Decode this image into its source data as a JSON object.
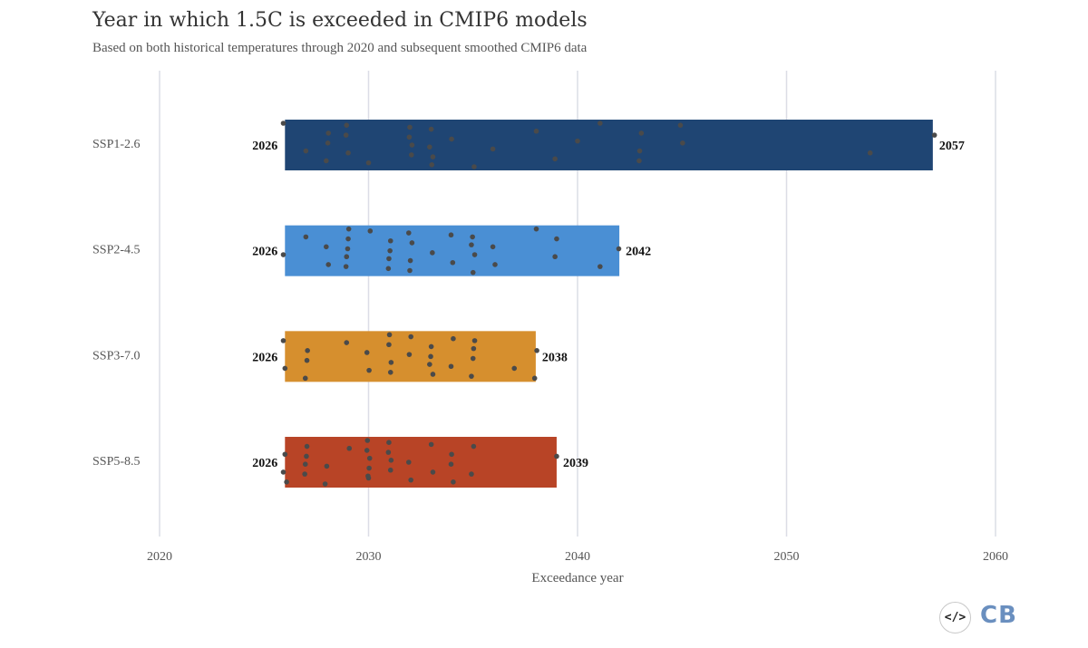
{
  "title": "Year in which 1.5C is exceeded in CMIP6 models",
  "subtitle": "Based on both historical temperatures through 2020 and subsequent smoothed CMIP6 data",
  "logo": {
    "code_icon": "</>",
    "text": "CB"
  },
  "chart_data": {
    "type": "bar",
    "orientation": "horizontal",
    "xlabel": "Exceedance year",
    "ylabel": "",
    "xlim": [
      2020,
      2060
    ],
    "xticks": [
      2020,
      2030,
      2040,
      2050,
      2060
    ],
    "grid": true,
    "point_color": "#4a4a4a",
    "series": [
      {
        "name": "SSP1-2.6",
        "color": "#1f4573",
        "min": 2026,
        "max": 2057,
        "min_label": "2026",
        "max_label": "2057",
        "points": [
          2026,
          2027,
          2028,
          2028,
          2028,
          2029,
          2029,
          2029,
          2030,
          2032,
          2032,
          2032,
          2032,
          2033,
          2033,
          2033,
          2033,
          2034,
          2035,
          2036,
          2038,
          2039,
          2040,
          2041,
          2043,
          2043,
          2043,
          2045,
          2045,
          2054,
          2057
        ]
      },
      {
        "name": "SSP2-4.5",
        "color": "#4a8fd4",
        "min": 2026,
        "max": 2042,
        "min_label": "2026",
        "max_label": "2042",
        "points": [
          2026,
          2027,
          2028,
          2028,
          2029,
          2029,
          2029,
          2029,
          2029,
          2030,
          2031,
          2031,
          2031,
          2031,
          2032,
          2032,
          2032,
          2032,
          2033,
          2034,
          2034,
          2035,
          2035,
          2035,
          2035,
          2036,
          2036,
          2038,
          2039,
          2039,
          2041,
          2042
        ]
      },
      {
        "name": "SSP3-7.0",
        "color": "#d68f2e",
        "min": 2026,
        "max": 2038,
        "min_label": "2026",
        "max_label": "2038",
        "points": [
          2026,
          2026,
          2027,
          2027,
          2027,
          2029,
          2030,
          2030,
          2031,
          2031,
          2031,
          2031,
          2032,
          2032,
          2033,
          2033,
          2033,
          2033,
          2034,
          2034,
          2035,
          2035,
          2035,
          2035,
          2037,
          2038,
          2038
        ]
      },
      {
        "name": "SSP5-8.5",
        "color": "#b84426",
        "min": 2026,
        "max": 2039,
        "min_label": "2026",
        "max_label": "2039",
        "points": [
          2026,
          2026,
          2026,
          2027,
          2027,
          2027,
          2027,
          2028,
          2028,
          2029,
          2030,
          2030,
          2030,
          2030,
          2030,
          2030,
          2031,
          2031,
          2031,
          2031,
          2032,
          2032,
          2033,
          2033,
          2034,
          2034,
          2034,
          2035,
          2035,
          2039
        ]
      }
    ]
  }
}
